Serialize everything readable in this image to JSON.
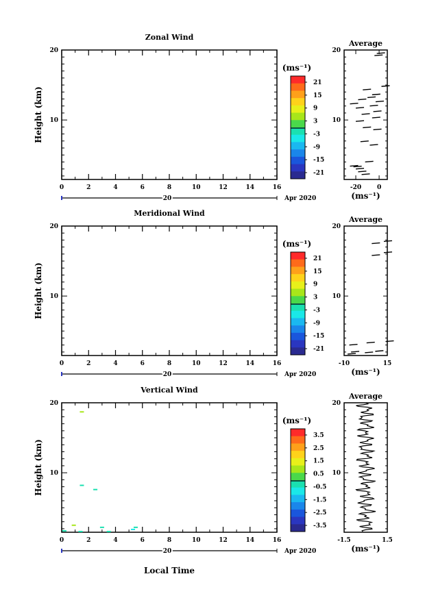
{
  "chart_data": [
    {
      "type": "heatmap",
      "title": "Zonal Wind",
      "xlabel": "",
      "ylabel": "Height (km)",
      "xlim": [
        0,
        16
      ],
      "ylim": [
        1.5,
        20
      ],
      "x_ticks": [
        "0",
        "2",
        "4",
        "6",
        "8",
        "10",
        "12",
        "14",
        "16"
      ],
      "y_ticks": [
        "10",
        "20"
      ],
      "date_day": "20",
      "date_label": "Apr 2020",
      "colorbar": {
        "unit": "(ms⁻¹)",
        "ticks": [
          "21",
          "15",
          "9",
          "3",
          "-3",
          "-9",
          "-15",
          "-21"
        ]
      },
      "average": {
        "title": "Average",
        "xlabel": "(ms⁻¹)",
        "x_ticks": [
          "-20",
          "0"
        ],
        "xlim": [
          -30,
          7
        ],
        "y_ticks": [
          "10",
          "20"
        ],
        "profile": [
          [
            -20,
            3.0
          ],
          [
            -22,
            3.3
          ],
          [
            -18,
            2.6
          ],
          [
            -15,
            2.2
          ],
          [
            -25,
            3.4
          ],
          [
            -12,
            4.0
          ],
          [
            -8,
            6.4
          ],
          [
            -16,
            6.9
          ],
          [
            -5,
            8.6
          ],
          [
            -14,
            8.9
          ],
          [
            -20,
            9.8
          ],
          [
            -6,
            10.3
          ],
          [
            -15,
            10.8
          ],
          [
            -5,
            11.2
          ],
          [
            -20,
            11.7
          ],
          [
            -8,
            12.0
          ],
          [
            -25,
            12.3
          ],
          [
            -3,
            12.6
          ],
          [
            -18,
            12.9
          ],
          [
            -10,
            13.2
          ],
          [
            -6,
            13.6
          ],
          [
            -14,
            14.3
          ],
          [
            2,
            14.8
          ],
          [
            -4,
            19.2
          ],
          [
            -2,
            19.5
          ]
        ]
      }
    },
    {
      "type": "heatmap",
      "title": "Meridional Wind",
      "xlabel": "",
      "ylabel": "Height (km)",
      "xlim": [
        0,
        16
      ],
      "ylim": [
        1.5,
        20
      ],
      "x_ticks": [
        "0",
        "2",
        "4",
        "6",
        "8",
        "10",
        "12",
        "14",
        "16"
      ],
      "y_ticks": [
        "10",
        "20"
      ],
      "date_day": "20",
      "date_label": "Apr 2020",
      "colorbar": {
        "unit": "(ms⁻¹)",
        "ticks": [
          "21",
          "15",
          "9",
          "3",
          "-3",
          "-9",
          "-15",
          "-21"
        ]
      },
      "average": {
        "title": "Average",
        "xlabel": "(ms⁻¹)",
        "x_ticks": [
          "-10",
          "15"
        ],
        "xlim": [
          -10,
          15
        ],
        "y_ticks": [
          "10",
          "20"
        ],
        "profile": [
          [
            -8,
            1.7
          ],
          [
            2,
            1.9
          ],
          [
            -6,
            2.0
          ],
          [
            8,
            2.1
          ],
          [
            -7,
            3.0
          ],
          [
            3,
            3.3
          ],
          [
            14,
            3.5
          ],
          [
            6,
            15.8
          ],
          [
            13,
            16.2
          ],
          [
            6,
            17.5
          ],
          [
            13,
            17.8
          ]
        ]
      }
    },
    {
      "type": "heatmap",
      "title": "Vertical Wind",
      "xlabel": "Local Time",
      "ylabel": "Height (km)",
      "xlim": [
        0,
        16
      ],
      "ylim": [
        1.5,
        20
      ],
      "x_ticks": [
        "0",
        "2",
        "4",
        "6",
        "8",
        "10",
        "12",
        "14",
        "16"
      ],
      "y_ticks": [
        "10",
        "20"
      ],
      "date_day": "20",
      "date_label": "Apr 2020",
      "colorbar": {
        "unit": "(ms⁻¹)",
        "ticks": [
          "3.5",
          "2.5",
          "1.5",
          "0.5",
          "-0.5",
          "-1.5",
          "-2.5",
          "-3.5"
        ]
      },
      "average": {
        "title": "Average",
        "xlabel": "(ms⁻¹)",
        "x_ticks": [
          "-1.5",
          "1.5"
        ],
        "xlim": [
          -1.5,
          1.5
        ],
        "y_ticks": [
          "10",
          "20"
        ]
      },
      "cells": [
        {
          "t": 1.5,
          "h": 18.7,
          "v": 1.0
        },
        {
          "t": 1.5,
          "h": 8.2,
          "v": -0.4
        },
        {
          "t": 2.5,
          "h": 7.6,
          "v": -0.3
        },
        {
          "t": 0.9,
          "h": 2.5,
          "v": 0.9
        },
        {
          "t": 1.4,
          "h": 1.6,
          "v": -0.3
        },
        {
          "t": 3.0,
          "h": 2.2,
          "v": -0.5
        },
        {
          "t": 5.5,
          "h": 2.2,
          "v": -0.4
        },
        {
          "t": 5.3,
          "h": 1.9,
          "v": -0.6
        },
        {
          "t": 0.2,
          "h": 1.7,
          "v": -0.2
        },
        {
          "t": 3.5,
          "h": 1.6,
          "v": -0.3
        }
      ]
    }
  ]
}
